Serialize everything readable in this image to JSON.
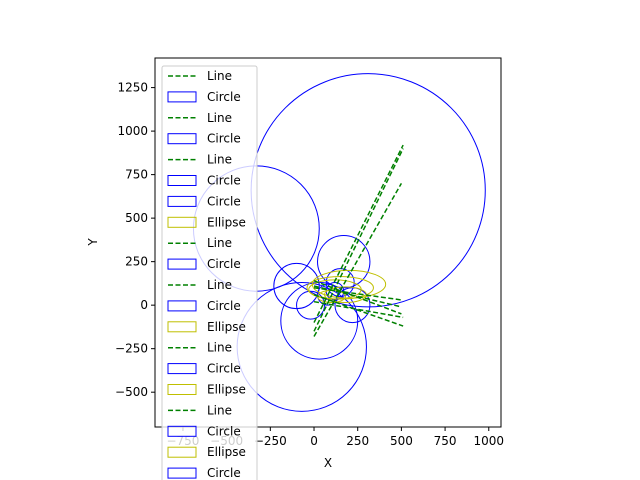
{
  "chart_data": {
    "type": "scatter",
    "title": "",
    "xlabel": "X",
    "ylabel": "Y",
    "xlim": [
      -910,
      1070
    ],
    "ylim": [
      -700,
      1420
    ],
    "xticks": [
      -750,
      -500,
      -250,
      0,
      250,
      500,
      750,
      1000
    ],
    "xtick_labels": [
      "−750",
      "−500",
      "−250",
      "0",
      "250",
      "500",
      "750",
      "1000"
    ],
    "yticks": [
      -500,
      -250,
      0,
      250,
      500,
      750,
      1000,
      1250
    ],
    "ytick_labels": [
      "−500",
      "−250",
      "0",
      "250",
      "500",
      "750",
      "1000",
      "1250"
    ],
    "aspect": "equal",
    "grid": false,
    "legend_position": "upper-left",
    "colors": {
      "line": "#008000",
      "circle": "#0000ff",
      "ellipse": "#bfbf00"
    },
    "circles": [
      {
        "cx": 310,
        "cy": 660,
        "r": 670
      },
      {
        "cx": -330,
        "cy": 440,
        "r": 360
      },
      {
        "cx": -70,
        "cy": -240,
        "r": 370
      },
      {
        "cx": 170,
        "cy": 250,
        "r": 150
      },
      {
        "cx": 30,
        "cy": -90,
        "r": 220
      },
      {
        "cx": -100,
        "cy": 110,
        "r": 130
      },
      {
        "cx": 150,
        "cy": 130,
        "r": 80
      },
      {
        "cx": 220,
        "cy": 0,
        "r": 100
      },
      {
        "cx": -20,
        "cy": 0,
        "r": 80
      },
      {
        "cx": 80,
        "cy": 60,
        "r": 60
      },
      {
        "cx": 120,
        "cy": 80,
        "r": 50
      }
    ],
    "ellipses": [
      {
        "cx": 200,
        "cy": 120,
        "rx": 210,
        "ry": 80
      },
      {
        "cx": 150,
        "cy": 100,
        "rx": 190,
        "ry": 65
      },
      {
        "cx": 120,
        "cy": 90,
        "rx": 150,
        "ry": 55
      },
      {
        "cx": 180,
        "cy": 60,
        "rx": 120,
        "ry": 45
      },
      {
        "cx": 100,
        "cy": 50,
        "rx": 80,
        "ry": 35
      }
    ],
    "lines": [
      {
        "x": [
          0,
          510
        ],
        "y": [
          -150,
          900
        ]
      },
      {
        "x": [
          0,
          500
        ],
        "y": [
          -180,
          700
        ]
      },
      {
        "x": [
          0,
          510
        ],
        "y": [
          -100,
          920
        ]
      },
      {
        "x": [
          0,
          500
        ],
        "y": [
          100,
          30
        ]
      },
      {
        "x": [
          0,
          510
        ],
        "y": [
          60,
          -120
        ]
      },
      {
        "x": [
          0,
          500
        ],
        "y": [
          140,
          -50
        ]
      },
      {
        "x": [
          0,
          510
        ],
        "y": [
          20,
          -70
        ]
      },
      {
        "x": [
          0,
          500
        ],
        "y": [
          110,
          -10
        ]
      }
    ],
    "legend": [
      {
        "label": "Line",
        "kind": "line"
      },
      {
        "label": "Circle",
        "kind": "circle"
      },
      {
        "label": "Line",
        "kind": "line"
      },
      {
        "label": "Circle",
        "kind": "circle"
      },
      {
        "label": "Line",
        "kind": "line"
      },
      {
        "label": "Circle",
        "kind": "circle"
      },
      {
        "label": "Circle",
        "kind": "circle"
      },
      {
        "label": "Ellipse",
        "kind": "ellipse"
      },
      {
        "label": "Line",
        "kind": "line"
      },
      {
        "label": "Circle",
        "kind": "circle"
      },
      {
        "label": "Line",
        "kind": "line"
      },
      {
        "label": "Circle",
        "kind": "circle"
      },
      {
        "label": "Ellipse",
        "kind": "ellipse"
      },
      {
        "label": "Line",
        "kind": "line"
      },
      {
        "label": "Circle",
        "kind": "circle"
      },
      {
        "label": "Ellipse",
        "kind": "ellipse"
      },
      {
        "label": "Line",
        "kind": "line"
      },
      {
        "label": "Circle",
        "kind": "circle"
      },
      {
        "label": "Ellipse",
        "kind": "ellipse"
      },
      {
        "label": "Circle",
        "kind": "circle"
      }
    ]
  }
}
